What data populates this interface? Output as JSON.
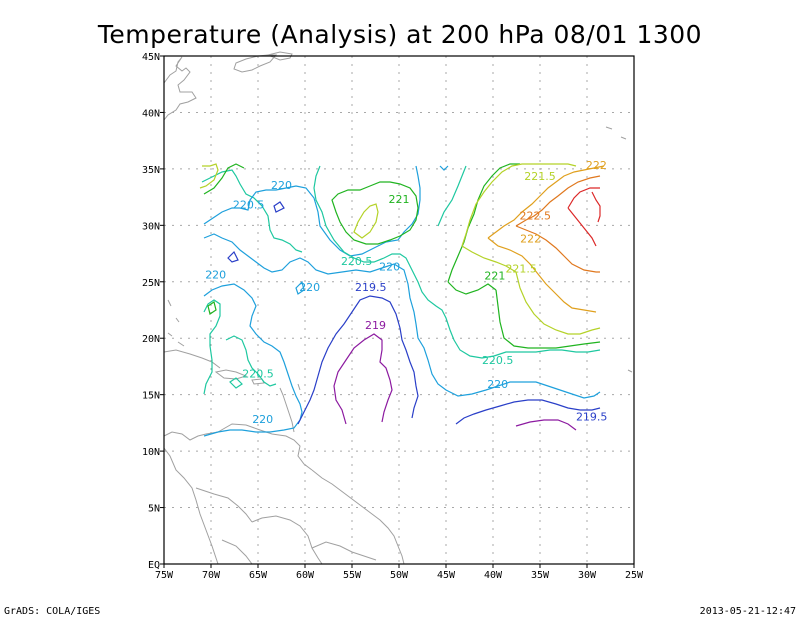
{
  "title": "Temperature (Analysis) at 200 hPa 08/01 1300",
  "footer": {
    "left": "GrADS: COLA/IGES",
    "right": "2013-05-21-12:47"
  },
  "axes": {
    "lon_ticks": [
      "75W",
      "70W",
      "65W",
      "60W",
      "55W",
      "50W",
      "45W",
      "40W",
      "35W",
      "30W",
      "25W"
    ],
    "lat_ticks": [
      "EQ",
      "5N",
      "10N",
      "15N",
      "20N",
      "25N",
      "30N",
      "35N",
      "40N",
      "45N"
    ],
    "lon_range": [
      -75,
      -25
    ],
    "lat_range": [
      0,
      45
    ],
    "grid": true
  },
  "colors": {
    "coast": "#a0a0a0",
    "grid": "#a8a8a8",
    "c219": "#8c1aa0",
    "c219_5": "#2a3fc8",
    "c220": "#1ea0dc",
    "c220_5": "#1ec8a0",
    "c221": "#20b420",
    "c221_5": "#b4d228",
    "c222": "#e0a01e",
    "c222_5": "#e0781e",
    "c223": "#dc2828"
  },
  "contour_labels": [
    {
      "text": "220",
      "lon": -62.5,
      "lat": 33.2,
      "color": "c220"
    },
    {
      "text": "220.5",
      "lon": -66.0,
      "lat": 31.5,
      "color": "c220"
    },
    {
      "text": "221",
      "lon": -50.0,
      "lat": 32.0,
      "color": "c221"
    },
    {
      "text": "220",
      "lon": -69.5,
      "lat": 25.3,
      "color": "c220"
    },
    {
      "text": "220.5",
      "lon": -54.5,
      "lat": 26.5,
      "color": "c220_5"
    },
    {
      "text": "220",
      "lon": -51.0,
      "lat": 26.0,
      "color": "c220"
    },
    {
      "text": "220",
      "lon": -59.5,
      "lat": 24.2,
      "color": "c220"
    },
    {
      "text": "219.5",
      "lon": -53.0,
      "lat": 24.2,
      "color": "c219_5"
    },
    {
      "text": "219",
      "lon": -52.5,
      "lat": 20.8,
      "color": "c219"
    },
    {
      "text": "220.5",
      "lon": -65.0,
      "lat": 16.5,
      "color": "c220_5"
    },
    {
      "text": "220",
      "lon": -64.5,
      "lat": 12.5,
      "color": "c220"
    },
    {
      "text": "220.5",
      "lon": -39.5,
      "lat": 17.7,
      "color": "c220_5"
    },
    {
      "text": "220",
      "lon": -39.5,
      "lat": 15.6,
      "color": "c220"
    },
    {
      "text": "219.5",
      "lon": -29.5,
      "lat": 12.7,
      "color": "c219_5"
    },
    {
      "text": "221",
      "lon": -39.8,
      "lat": 25.2,
      "color": "c221"
    },
    {
      "text": "221.5",
      "lon": -37.0,
      "lat": 25.8,
      "color": "c221_5"
    },
    {
      "text": "222",
      "lon": -36.0,
      "lat": 28.5,
      "color": "c222"
    },
    {
      "text": "222.5",
      "lon": -35.5,
      "lat": 30.5,
      "color": "c222_5"
    },
    {
      "text": "221.5",
      "lon": -35.0,
      "lat": 34.0,
      "color": "c221_5"
    },
    {
      "text": "222",
      "lon": -29.0,
      "lat": 35.0,
      "color": "c222"
    }
  ]
}
